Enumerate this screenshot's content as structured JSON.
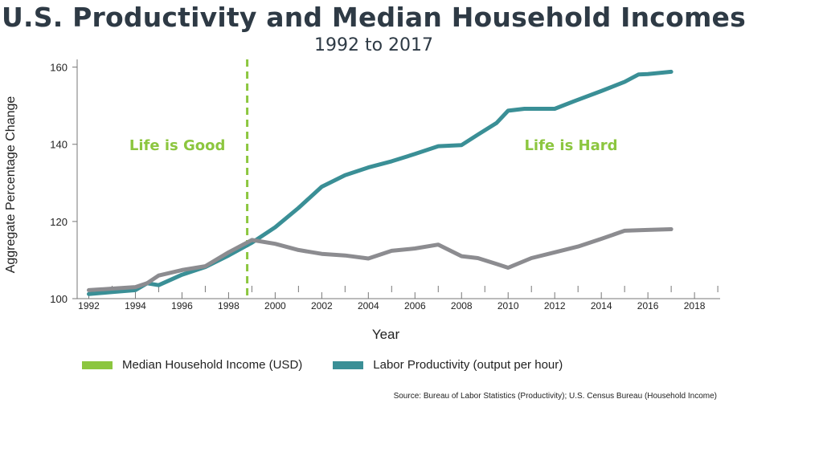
{
  "chart_data": {
    "type": "line",
    "title": "U.S. Productivity and Median Household Incomes",
    "subtitle": "1992 to 2017",
    "xlabel": "Year",
    "ylabel": "Aggregate Percentage Change",
    "xlim": [
      1991.5,
      2019.1
    ],
    "ylim": [
      100,
      162
    ],
    "x_ticks": [
      1992,
      1994,
      1996,
      1998,
      2000,
      2002,
      2004,
      2006,
      2008,
      2010,
      2012,
      2014,
      2016,
      2018
    ],
    "y_ticks": [
      100,
      120,
      140,
      160
    ],
    "grid": false,
    "series": [
      {
        "name": "Labor Productivity (output per hour)",
        "color": "#3a8f96",
        "x": [
          1992,
          1993,
          1994,
          1994.5,
          1995,
          1996,
          1997,
          1998,
          1999,
          2000,
          2001,
          2002,
          2003,
          2004,
          2005,
          2006,
          2007,
          2008,
          2008.7,
          2009.5,
          2010,
          2010.7,
          2011,
          2012,
          2012.8,
          2014,
          2015,
          2015.6,
          2016,
          2017
        ],
        "values": [
          101.2,
          101.7,
          102.2,
          104,
          103.5,
          106.2,
          108.2,
          111.2,
          114.5,
          118.5,
          123.5,
          129,
          132,
          134,
          135.6,
          137.5,
          139.5,
          139.8,
          142.5,
          145.5,
          148.7,
          149.2,
          149.2,
          149.2,
          151.1,
          153.8,
          156.2,
          158.1,
          158.2,
          158.8
        ]
      },
      {
        "name": "",
        "color": "#8c8c90",
        "x": [
          1992,
          1993,
          1994,
          1994.5,
          1995,
          1996,
          1997,
          1998,
          1999,
          2000,
          2001,
          2002,
          2003,
          2004,
          2005,
          2006,
          2007,
          2008,
          2008.7,
          2009.5,
          2010,
          2011,
          2012,
          2013,
          2014,
          2015,
          2016,
          2017
        ],
        "values": [
          102.2,
          102.6,
          103,
          104,
          106,
          107.4,
          108.4,
          112,
          115.2,
          114.2,
          112.6,
          111.6,
          111.2,
          110.4,
          112.4,
          113,
          114,
          111,
          110.5,
          109,
          108,
          110.5,
          112,
          113.5,
          115.5,
          117.6,
          117.8,
          118
        ]
      }
    ],
    "annotations": [
      {
        "text": "Life is Good",
        "x": 1995.8,
        "y": 138.5
      },
      {
        "text": "Life is Hard",
        "x": 2012.7,
        "y": 138.5
      }
    ],
    "divider": {
      "x": 1998.8,
      "color": "#8cc63f"
    },
    "legend": {
      "placement": "bottom-left",
      "items": [
        {
          "label": "Median Household Income (USD)",
          "color": "#8cc63f"
        },
        {
          "label": "Labor Productivity (output per hour)",
          "color": "#3a8f96"
        }
      ]
    },
    "annotation_color": "#8cc63f",
    "source": "Source: Bureau of Labor Statistics (Productivity); U.S. Census Bureau (Household Income)"
  }
}
